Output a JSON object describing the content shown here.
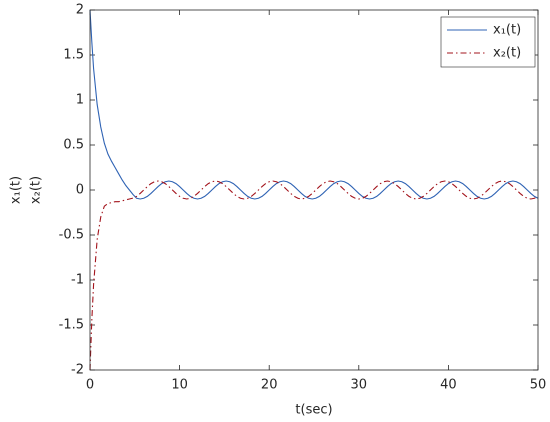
{
  "chart_data": {
    "type": "line",
    "xlabel": "t(sec)",
    "ylabel": [
      "x₁(t)",
      "x₂(t)"
    ],
    "xlim": [
      0,
      50
    ],
    "xticks": [
      0,
      10,
      20,
      30,
      40,
      50
    ],
    "ylim": [
      -2,
      2
    ],
    "yticks": [
      -2,
      -1.5,
      -1,
      -0.5,
      0,
      0.5,
      1,
      1.5,
      2
    ],
    "legend": "upper right",
    "x": [
      0,
      0.2,
      0.4,
      0.8,
      1.2,
      1.6,
      2,
      2.4,
      2.8,
      3.2,
      3.6,
      4,
      4.4,
      4.8,
      5.2,
      5.6,
      6,
      6.4,
      6.8,
      7.2,
      7.6,
      8,
      8.4,
      8.8,
      9.2,
      9.6,
      10,
      10.4,
      10.8,
      11.2,
      11.6,
      12,
      12.4,
      12.8,
      13.2,
      13.6,
      14,
      14.4,
      14.8,
      15.2,
      15.6,
      16,
      16.4,
      16.8,
      17.2,
      17.6,
      18,
      18.4,
      18.8,
      19.2,
      19.6,
      20,
      20.4,
      20.8,
      21.2,
      21.6,
      22,
      22.4,
      22.8,
      23.2,
      23.6,
      24,
      24.4,
      24.8,
      25.2,
      25.6,
      26,
      26.4,
      26.8,
      27.2,
      27.6,
      28,
      28.4,
      28.8,
      29.2,
      29.6,
      30,
      30.4,
      30.8,
      31.2,
      31.6,
      32,
      32.4,
      32.8,
      33.2,
      33.6,
      34,
      34.4,
      34.8,
      35.2,
      35.6,
      36,
      36.4,
      36.8,
      37.2,
      37.6,
      38,
      38.4,
      38.8,
      39.2,
      39.6,
      40,
      40.4,
      40.8,
      41.2,
      41.6,
      42,
      42.4,
      42.8,
      43.2,
      43.6,
      44,
      44.4,
      44.8,
      45.2,
      45.6,
      46,
      46.4,
      46.8,
      47.2,
      47.6,
      48,
      48.4,
      48.8,
      49.2,
      49.6,
      50
    ],
    "series": [
      {
        "name": "x₁(t)",
        "color": "#2f63b4",
        "dash": "solid",
        "values": [
          2,
          1.65,
          1.35,
          0.95,
          0.7,
          0.52,
          0.4,
          0.32,
          0.25,
          0.18,
          0.11,
          0.05,
          0,
          -0.05,
          -0.092,
          -0.1,
          -0.092,
          -0.071,
          -0.038,
          0,
          0.038,
          0.071,
          0.092,
          0.1,
          0.092,
          0.071,
          0.038,
          0,
          -0.038,
          -0.071,
          -0.092,
          -0.1,
          -0.092,
          -0.071,
          -0.038,
          0,
          0.038,
          0.071,
          0.092,
          0.1,
          0.092,
          0.071,
          0.038,
          0,
          -0.038,
          -0.071,
          -0.092,
          -0.1,
          -0.092,
          -0.071,
          -0.038,
          0,
          0.038,
          0.071,
          0.092,
          0.1,
          0.092,
          0.071,
          0.038,
          0,
          -0.038,
          -0.071,
          -0.092,
          -0.1,
          -0.092,
          -0.071,
          -0.038,
          0,
          0.038,
          0.071,
          0.092,
          0.1,
          0.092,
          0.071,
          0.038,
          0,
          -0.038,
          -0.071,
          -0.092,
          -0.1,
          -0.092,
          -0.071,
          -0.038,
          0,
          0.038,
          0.071,
          0.092,
          0.1,
          0.092,
          0.071,
          0.038,
          0,
          -0.038,
          -0.071,
          -0.092,
          -0.1,
          -0.092,
          -0.071,
          -0.038,
          0,
          0.038,
          0.071,
          0.092,
          0.1,
          0.092,
          0.071,
          0.038,
          0,
          -0.038,
          -0.071,
          -0.092,
          -0.1,
          -0.092,
          -0.071,
          -0.038,
          0,
          0.038,
          0.071,
          0.092,
          0.1,
          0.092,
          0.071,
          0.038,
          0,
          -0.038,
          -0.071,
          -0.092
        ]
      },
      {
        "name": "x₂(t)",
        "color": "#a3141c",
        "dash": "dashdot",
        "values": [
          -2,
          -1.45,
          -1.05,
          -0.55,
          -0.3,
          -0.18,
          -0.15,
          -0.14,
          -0.13,
          -0.13,
          -0.12,
          -0.11,
          -0.1,
          -0.09,
          -0.071,
          -0.038,
          0,
          0.038,
          0.071,
          0.092,
          0.1,
          0.092,
          0.071,
          0.038,
          0,
          -0.038,
          -0.071,
          -0.092,
          -0.1,
          -0.092,
          -0.071,
          -0.038,
          0,
          0.038,
          0.071,
          0.092,
          0.1,
          0.092,
          0.071,
          0.038,
          0,
          -0.038,
          -0.071,
          -0.092,
          -0.1,
          -0.092,
          -0.071,
          -0.038,
          0,
          0.038,
          0.071,
          0.092,
          0.1,
          0.092,
          0.071,
          0.038,
          0,
          -0.038,
          -0.071,
          -0.092,
          -0.1,
          -0.092,
          -0.071,
          -0.038,
          0,
          0.038,
          0.071,
          0.092,
          0.1,
          0.092,
          0.071,
          0.038,
          0,
          -0.038,
          -0.071,
          -0.092,
          -0.1,
          -0.092,
          -0.071,
          -0.038,
          0,
          0.038,
          0.071,
          0.092,
          0.1,
          0.092,
          0.071,
          0.038,
          0,
          -0.038,
          -0.071,
          -0.092,
          -0.1,
          -0.092,
          -0.071,
          -0.038,
          0,
          0.038,
          0.071,
          0.092,
          0.1,
          0.092,
          0.071,
          0.038,
          0,
          -0.038,
          -0.071,
          -0.092,
          -0.1,
          -0.092,
          -0.071,
          -0.038,
          0,
          0.038,
          0.071,
          0.092,
          0.1,
          0.092,
          0.071,
          0.038,
          0,
          -0.038,
          -0.071,
          -0.092,
          -0.1,
          -0.092,
          -0.071
        ]
      }
    ]
  }
}
